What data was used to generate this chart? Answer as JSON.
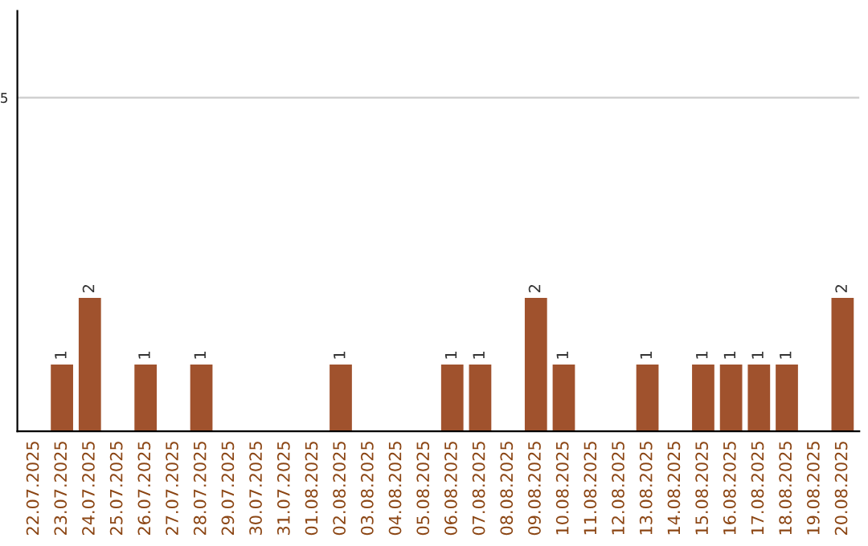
{
  "chart_data": {
    "type": "bar",
    "categories": [
      "22.07.2025",
      "23.07.2025",
      "24.07.2025",
      "25.07.2025",
      "26.07.2025",
      "27.07.2025",
      "28.07.2025",
      "29.07.2025",
      "30.07.2025",
      "31.07.2025",
      "01.08.2025",
      "02.08.2025",
      "03.08.2025",
      "04.08.2025",
      "05.08.2025",
      "06.08.2025",
      "07.08.2025",
      "08.08.2025",
      "09.08.2025",
      "10.08.2025",
      "11.08.2025",
      "12.08.2025",
      "13.08.2025",
      "14.08.2025",
      "15.08.2025",
      "16.08.2025",
      "17.08.2025",
      "18.08.2025",
      "19.08.2025",
      "20.08.2025"
    ],
    "values": [
      0,
      1,
      2,
      0,
      1,
      0,
      1,
      0,
      0,
      0,
      0,
      1,
      0,
      0,
      0,
      1,
      1,
      0,
      2,
      1,
      0,
      0,
      1,
      0,
      1,
      1,
      1,
      1,
      0,
      2
    ],
    "value_labels": [
      null,
      "1",
      "2",
      null,
      "1",
      null,
      "1",
      null,
      null,
      null,
      null,
      "1",
      null,
      null,
      null,
      "1",
      "1",
      null,
      "2",
      "1",
      null,
      null,
      "1",
      null,
      "1",
      "1",
      "1",
      "1",
      null,
      "2"
    ],
    "color": "#a0522d",
    "ylim": [
      0,
      6.3
    ],
    "yticks": [
      5
    ],
    "grid": "y"
  }
}
